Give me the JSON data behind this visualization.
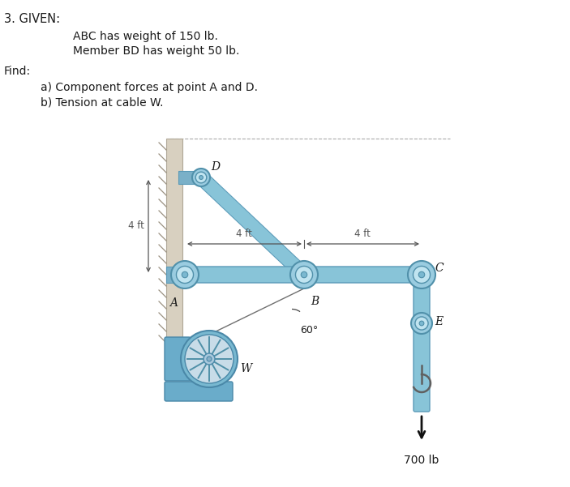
{
  "bg_color": "#ffffff",
  "text_color": "#1a1a1a",
  "beam_color": "#88c4d8",
  "beam_edge": "#5a9ab8",
  "beam_dark": "#4a8aaa",
  "wall_color": "#d8d0c0",
  "wall_edge": "#b0a898",
  "cable_color": "#888888",
  "dim_color": "#555555",
  "given_title": "3. GIVEN:",
  "given_line1": "ABC has weight of 150 lb.",
  "given_line2": "Member BD has weight 50 lb.",
  "find_label": "Find:",
  "find_a": "a) Component forces at point A and D.",
  "find_b": "b) Tension at cable W.",
  "dim_4ft_L": "4 ft",
  "dim_4ft_M": "4 ft",
  "dim_4ft_V": "4 ft",
  "label_A": "A",
  "label_B": "B",
  "label_C": "C",
  "label_D": "D",
  "label_E": "E",
  "label_W": "W",
  "angle_label": "60°",
  "load_label": "700 lb"
}
